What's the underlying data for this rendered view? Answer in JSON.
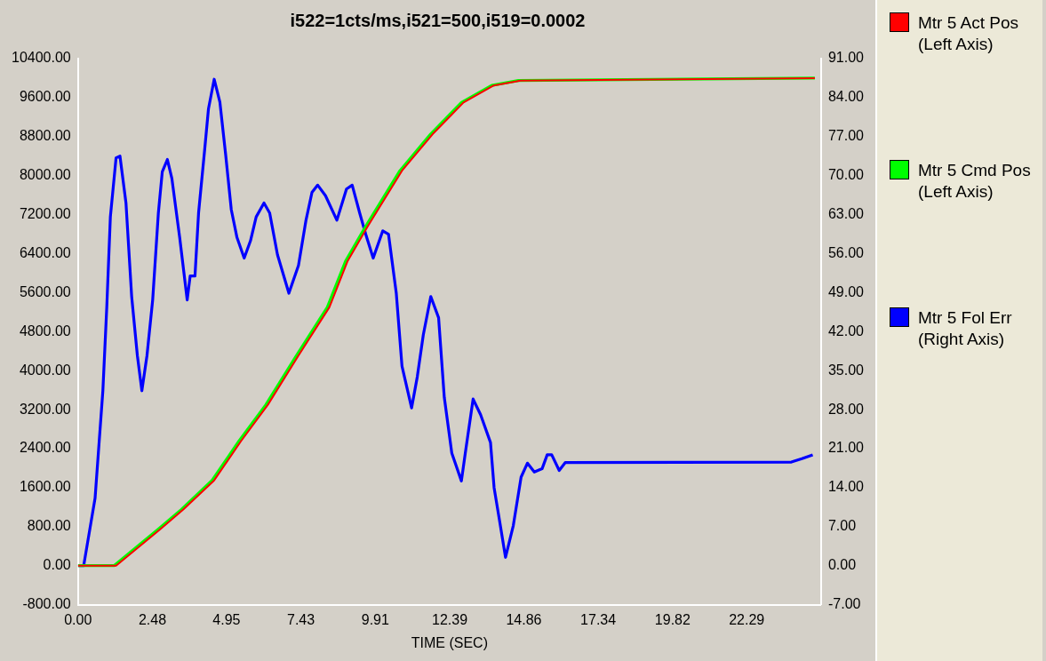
{
  "chart_data": {
    "type": "line",
    "title": "i522=1cts/ms,i521=500,i519=0.0002",
    "xlabel": "TIME (SEC)",
    "xlim": [
      0,
      24.77
    ],
    "xticks": [
      {
        "value": 0,
        "label": "0.00"
      },
      {
        "value": 2.48,
        "label": "2.48"
      },
      {
        "value": 4.95,
        "label": "4.95"
      },
      {
        "value": 7.43,
        "label": "7.43"
      },
      {
        "value": 9.91,
        "label": "9.91"
      },
      {
        "value": 12.39,
        "label": "12.39"
      },
      {
        "value": 14.86,
        "label": "14.86"
      },
      {
        "value": 17.34,
        "label": "17.34"
      },
      {
        "value": 19.82,
        "label": "19.82"
      },
      {
        "value": 22.29,
        "label": "22.29"
      }
    ],
    "ylim": [
      -800,
      10400
    ],
    "yticks": [
      {
        "value": -800,
        "label": "-800.00"
      },
      {
        "value": 0,
        "label": "0.00"
      },
      {
        "value": 800,
        "label": "800.00"
      },
      {
        "value": 1600,
        "label": "1600.00"
      },
      {
        "value": 2400,
        "label": "2400.00"
      },
      {
        "value": 3200,
        "label": "3200.00"
      },
      {
        "value": 4000,
        "label": "4000.00"
      },
      {
        "value": 4800,
        "label": "4800.00"
      },
      {
        "value": 5600,
        "label": "5600.00"
      },
      {
        "value": 6400,
        "label": "6400.00"
      },
      {
        "value": 7200,
        "label": "7200.00"
      },
      {
        "value": 8000,
        "label": "8000.00"
      },
      {
        "value": 8800,
        "label": "8800.00"
      },
      {
        "value": 9600,
        "label": "9600.00"
      },
      {
        "value": 10400,
        "label": "10400.00"
      }
    ],
    "y2lim": [
      -7,
      91
    ],
    "y2ticks": [
      {
        "value": -7,
        "label": "-7.00"
      },
      {
        "value": 0,
        "label": "0.00"
      },
      {
        "value": 7,
        "label": "7.00"
      },
      {
        "value": 14,
        "label": "14.00"
      },
      {
        "value": 21,
        "label": "21.00"
      },
      {
        "value": 28,
        "label": "28.00"
      },
      {
        "value": 35,
        "label": "35.00"
      },
      {
        "value": 42,
        "label": "42.00"
      },
      {
        "value": 49,
        "label": "49.00"
      },
      {
        "value": 56,
        "label": "56.00"
      },
      {
        "value": 63,
        "label": "63.00"
      },
      {
        "value": 70,
        "label": "70.00"
      },
      {
        "value": 77,
        "label": "77.00"
      },
      {
        "value": 84,
        "label": "84.00"
      },
      {
        "value": 91,
        "label": "91.00"
      }
    ],
    "grid": false,
    "legend": "right",
    "marker": "none",
    "line_style": "solid",
    "series": [
      {
        "name": "Mtr 5 Act Pos (Left Axis)",
        "color": "#ff0000",
        "x": [
          0,
          1.27,
          2.75,
          3.51,
          4.54,
          5.43,
          6.33,
          7.34,
          8.38,
          8.99,
          9.65,
          10.8,
          11.82,
          12.85,
          13.86,
          14.75,
          24.56
        ],
        "values": [
          0,
          0,
          750,
          1150,
          1750,
          2550,
          3300,
          4300,
          5300,
          6250,
          6950,
          8100,
          8850,
          9500,
          9850,
          9950,
          10000
        ]
      },
      {
        "name": "Mtr 5 Cmd Pos (Left Axis)",
        "color": "#00ff00",
        "x": [
          0,
          1.2,
          2.68,
          3.44,
          4.47,
          5.36,
          6.26,
          7.27,
          8.31,
          8.92,
          9.58,
          10.73,
          11.75,
          12.78,
          13.79,
          14.68,
          24.56
        ],
        "values": [
          0,
          0,
          750,
          1150,
          1750,
          2550,
          3300,
          4300,
          5300,
          6250,
          6950,
          8100,
          8850,
          9500,
          9850,
          9950,
          10000
        ]
      },
      {
        "name": "Mtr 5 Fol Err (Right Axis)",
        "color": "#0000ff",
        "axis": "y2",
        "x": [
          0,
          0.19,
          0.57,
          0.83,
          0.96,
          1.08,
          1.27,
          1.4,
          1.6,
          1.79,
          1.98,
          2.13,
          2.3,
          2.49,
          2.68,
          2.81,
          2.98,
          3.13,
          3.39,
          3.64,
          3.74,
          3.9,
          4.02,
          4.22,
          4.35,
          4.54,
          4.73,
          4.92,
          5.11,
          5.3,
          5.54,
          5.75,
          5.94,
          6.2,
          6.39,
          6.65,
          7.03,
          7.35,
          7.6,
          7.8,
          7.99,
          8.25,
          8.63,
          8.95,
          9.14,
          9.39,
          9.59,
          9.84,
          10.16,
          10.35,
          10.61,
          10.8,
          11.12,
          11.31,
          11.51,
          11.76,
          12.02,
          12.21,
          12.46,
          12.78,
          12.91,
          13.17,
          13.42,
          13.75,
          13.87,
          14.06,
          14.25,
          14.51,
          14.77,
          14.98,
          15.21,
          15.47,
          15.64,
          15.79,
          16.04,
          16.24,
          23.78,
          24.13,
          24.49
        ],
        "values": [
          0,
          0,
          12.1,
          31.4,
          46.4,
          62.6,
          73.2,
          73.5,
          65.1,
          48.3,
          37.7,
          31.4,
          37.7,
          47.7,
          63.3,
          70.7,
          72.9,
          69.5,
          58.9,
          47.7,
          52,
          52,
          63.3,
          74.5,
          82,
          87.3,
          83.2,
          73.9,
          63.9,
          58.9,
          55.2,
          58.3,
          62.6,
          65.1,
          63.3,
          55.8,
          48.9,
          53.9,
          62,
          67,
          68.3,
          66.4,
          62,
          67.6,
          68.3,
          63.3,
          59.5,
          55.2,
          60.1,
          59.5,
          48.9,
          35.8,
          28.3,
          33.9,
          41.4,
          48.3,
          44.5,
          30.2,
          20.2,
          15.2,
          20.2,
          29.9,
          27.1,
          22.1,
          14,
          7.8,
          1.5,
          7.2,
          15.9,
          18.4,
          16.8,
          17.4,
          19.9,
          19.9,
          17.1,
          18.5,
          18.6,
          19.2,
          19.9
        ]
      }
    ]
  }
}
